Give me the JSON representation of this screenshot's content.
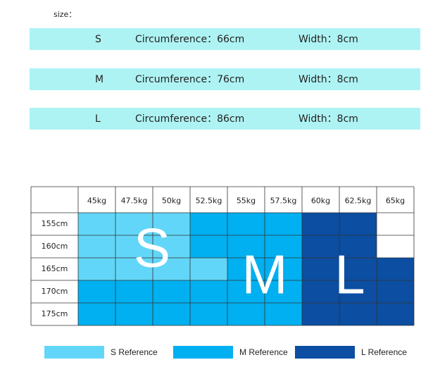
{
  "size_label": "size：",
  "size_rows": [
    {
      "size": "S",
      "circumference": "Circumference：66cm",
      "width": "Width：8cm"
    },
    {
      "size": "M",
      "circumference": "Circumference：76cm",
      "width": "Width：8cm"
    },
    {
      "size": "L",
      "circumference": "Circumference：86cm",
      "width": "Width：8cm"
    }
  ],
  "row_color": "#aef3f3",
  "table": {
    "weights": [
      "45kg",
      "47.5kg",
      "50kg",
      "52.5kg",
      "55kg",
      "57.5kg",
      "60kg",
      "62.5kg",
      "65kg"
    ],
    "heights": [
      "155cm",
      "160cm",
      "165cm",
      "170cm",
      "175cm"
    ],
    "cell_colors": [
      [
        "#62d6f8",
        "#62d6f8",
        "#62d6f8",
        "#00b0f0",
        "#00b0f0",
        "#00b0f0",
        "#0b4ea2",
        "#0b4ea2",
        "#ffffff"
      ],
      [
        "#62d6f8",
        "#62d6f8",
        "#62d6f8",
        "#00b0f0",
        "#00b0f0",
        "#00b0f0",
        "#0b4ea2",
        "#0b4ea2",
        "#ffffff"
      ],
      [
        "#62d6f8",
        "#62d6f8",
        "#62d6f8",
        "#62d6f8",
        "#00b0f0",
        "#00b0f0",
        "#0b4ea2",
        "#0b4ea2",
        "#0b4ea2"
      ],
      [
        "#00b0f0",
        "#00b0f0",
        "#00b0f0",
        "#00b0f0",
        "#00b0f0",
        "#00b0f0",
        "#0b4ea2",
        "#0b4ea2",
        "#0b4ea2"
      ],
      [
        "#00b0f0",
        "#00b0f0",
        "#00b0f0",
        "#00b0f0",
        "#00b0f0",
        "#00b0f0",
        "#0b4ea2",
        "#0b4ea2",
        "#0b4ea2"
      ]
    ],
    "zone_letters": [
      "S",
      "M",
      "L"
    ]
  },
  "legend": [
    {
      "label": "S Reference",
      "color": "#62d6f8"
    },
    {
      "label": "M Reference",
      "color": "#00b0f0"
    },
    {
      "label": "L Reference",
      "color": "#0b4ea2"
    }
  ]
}
